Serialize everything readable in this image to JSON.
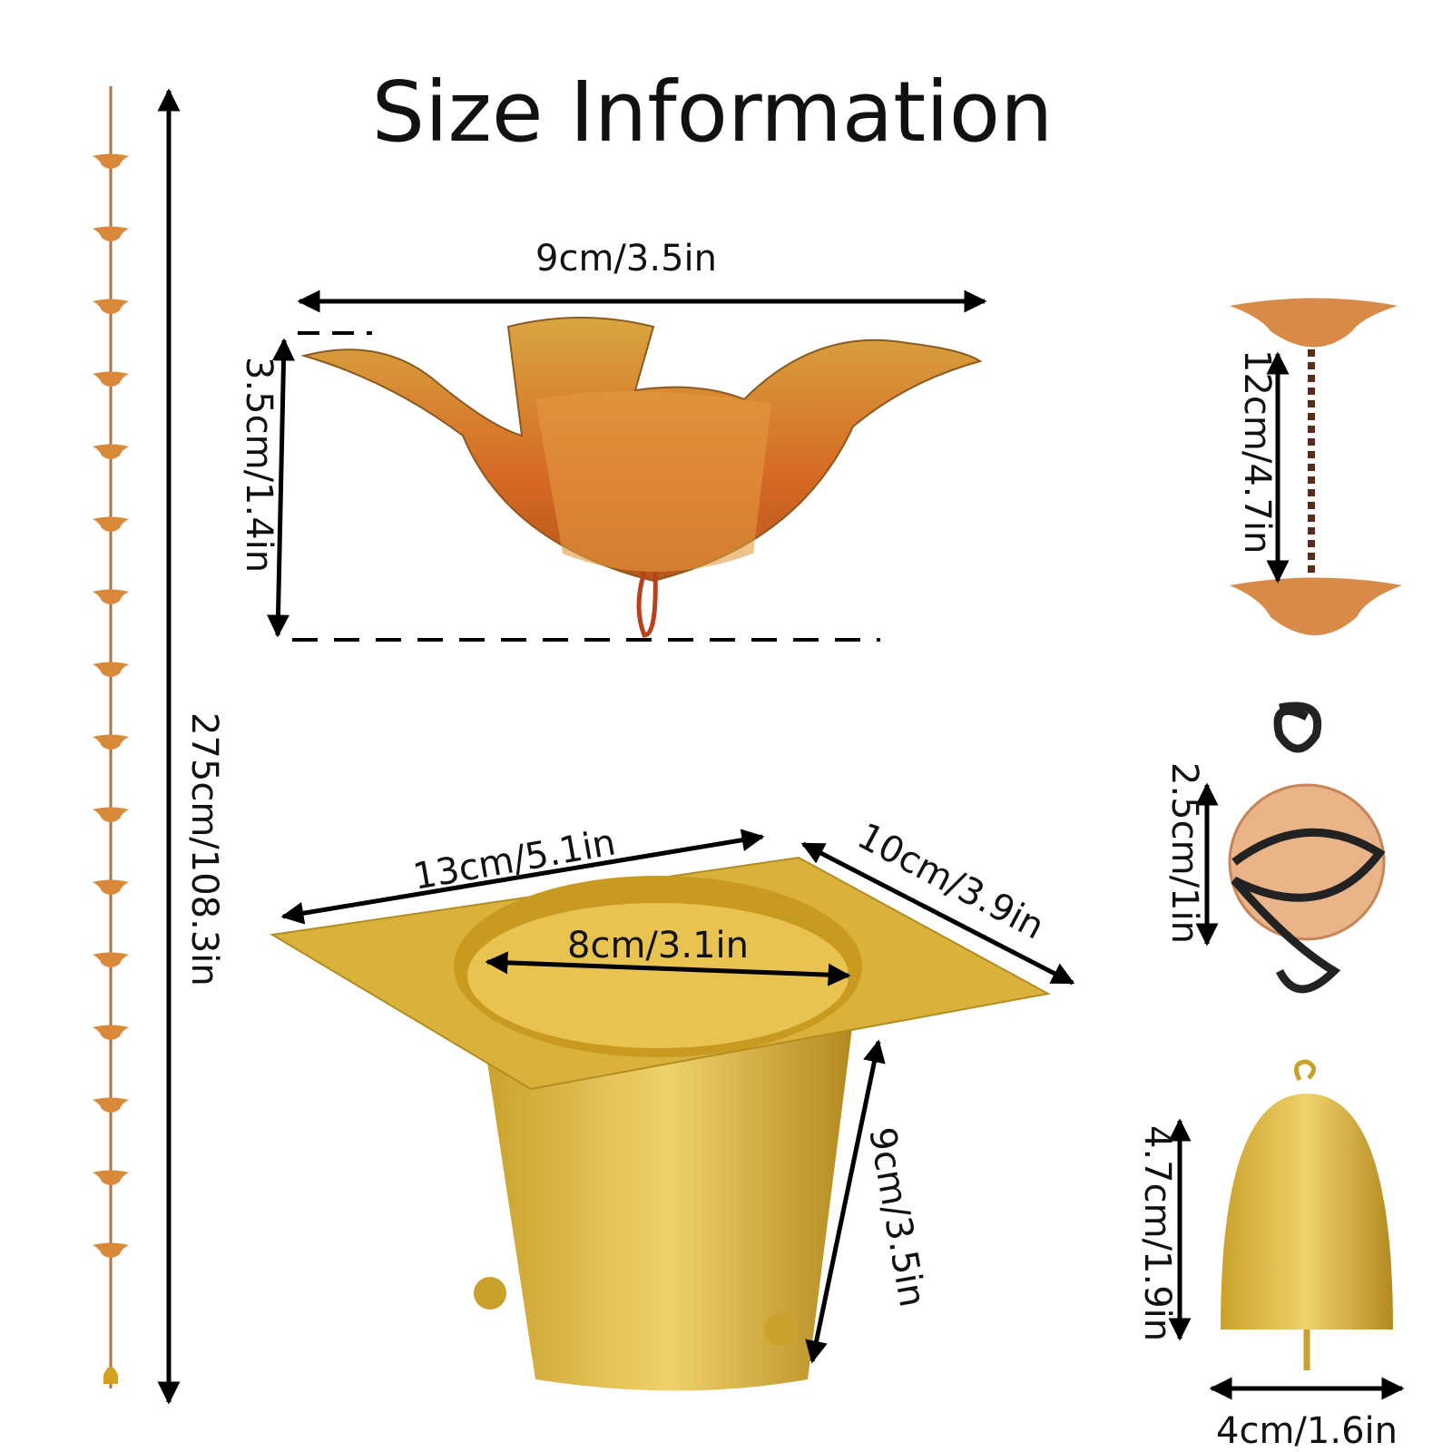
{
  "title": "Size Information",
  "dimensions": {
    "total_length": "275cm/108.3in",
    "cup_width": "9cm/3.5in",
    "cup_height": "3.5cm/1.4in",
    "gutter_length": "13cm/5.1in",
    "gutter_width": "10cm/3.9in",
    "gutter_hole": "8cm/3.1in",
    "gutter_height": "9cm/3.5in",
    "cup_spacing": "12cm/4.7in",
    "ball_size": "2.5cm/1in",
    "bell_height": "4.7cm/1.9in",
    "bell_width": "4cm/1.6in"
  }
}
